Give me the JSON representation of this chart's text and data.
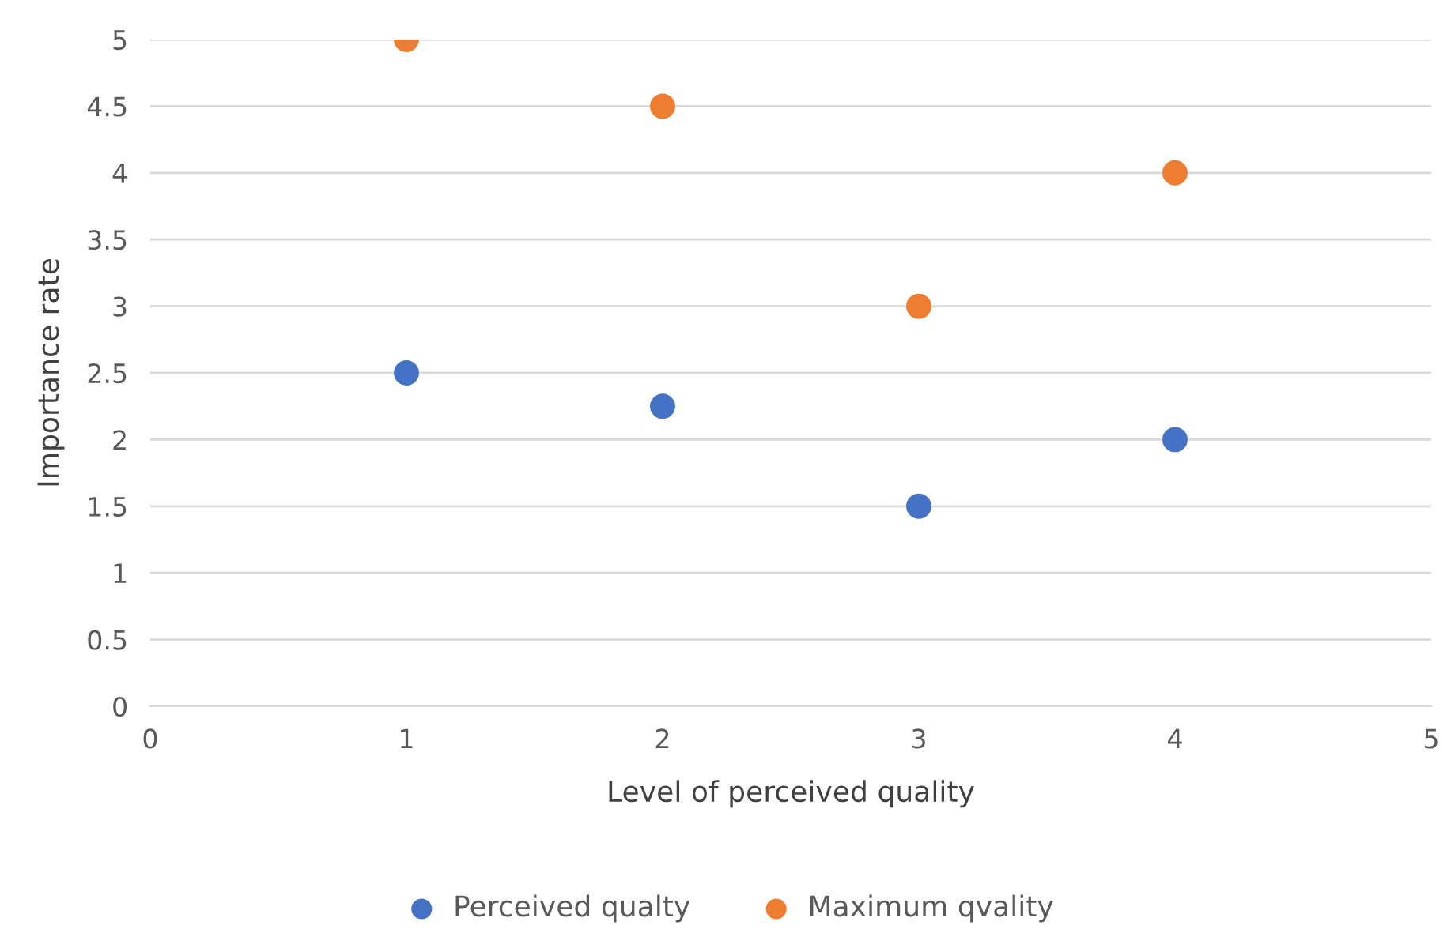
{
  "chart_data": {
    "type": "scatter",
    "xlabel": "Level of perceived quality",
    "ylabel": "Importance rate",
    "series": [
      {
        "name": "Perceived qualty",
        "color": "#4472c4",
        "x": [
          1,
          2,
          3,
          4
        ],
        "values": [
          2.5,
          2.25,
          1.5,
          2
        ]
      },
      {
        "name": "Maximum qvality",
        "color": "#ed7d31",
        "x": [
          1,
          2,
          3,
          4
        ],
        "values": [
          5,
          4.5,
          3,
          4
        ]
      }
    ],
    "xlim": [
      0,
      5
    ],
    "xticks": [
      0,
      1,
      2,
      3,
      4,
      5
    ],
    "ylim": [
      0,
      5
    ],
    "yticks": [
      0,
      0.5,
      1,
      1.5,
      2,
      2.5,
      3,
      3.5,
      4,
      4.5,
      5
    ],
    "grid": "y",
    "legend": "bottom",
    "marker": "circle"
  }
}
